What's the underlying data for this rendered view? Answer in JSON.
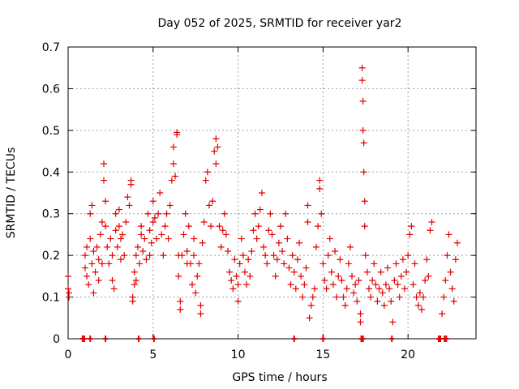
{
  "chart_data": {
    "type": "scatter",
    "title": "Day 052 of 2025, SRMTID for receiver yar2",
    "xlabel": "GPS time / hours",
    "ylabel": "SRMTID / TECUs",
    "xlim": [
      0,
      24
    ],
    "ylim": [
      0,
      0.7
    ],
    "xticks": [
      0,
      5,
      10,
      15,
      20
    ],
    "xtick_labels": [
      "0",
      "5",
      "10",
      "15",
      "20"
    ],
    "yticks": [
      0,
      0.1,
      0.2,
      0.3,
      0.4,
      0.5,
      0.6,
      0.7
    ],
    "ytick_labels": [
      "0",
      "0.1",
      "0.2",
      "0.3",
      "0.4",
      "0.5",
      "0.6",
      "0.7"
    ],
    "grid": true,
    "marker": "+",
    "series": [
      {
        "name": "SRMTID",
        "color": "#e00000",
        "points": [
          [
            0.0,
            0.15
          ],
          [
            0.0,
            0.12
          ],
          [
            0.05,
            0.1
          ],
          [
            0.05,
            0.11
          ],
          [
            1.0,
            0.2
          ],
          [
            1.0,
            0.17
          ],
          [
            1.1,
            0.22
          ],
          [
            1.1,
            0.15
          ],
          [
            1.2,
            0.13
          ],
          [
            1.3,
            0.24
          ],
          [
            1.3,
            0.3
          ],
          [
            1.4,
            0.32
          ],
          [
            1.4,
            0.18
          ],
          [
            1.5,
            0.11
          ],
          [
            1.5,
            0.21
          ],
          [
            1.6,
            0.16
          ],
          [
            1.7,
            0.22
          ],
          [
            1.8,
            0.19
          ],
          [
            1.8,
            0.14
          ],
          [
            1.9,
            0.25
          ],
          [
            2.0,
            0.28
          ],
          [
            2.0,
            0.18
          ],
          [
            2.1,
            0.42
          ],
          [
            2.1,
            0.38
          ],
          [
            2.2,
            0.33
          ],
          [
            2.2,
            0.27
          ],
          [
            2.3,
            0.22
          ],
          [
            2.4,
            0.18
          ],
          [
            2.5,
            0.24
          ],
          [
            2.6,
            0.2
          ],
          [
            2.6,
            0.14
          ],
          [
            2.7,
            0.12
          ],
          [
            2.8,
            0.3
          ],
          [
            2.8,
            0.26
          ],
          [
            2.9,
            0.22
          ],
          [
            3.0,
            0.27
          ],
          [
            3.0,
            0.31
          ],
          [
            3.1,
            0.24
          ],
          [
            3.1,
            0.19
          ],
          [
            3.2,
            0.25
          ],
          [
            3.3,
            0.2
          ],
          [
            3.4,
            0.28
          ],
          [
            3.5,
            0.34
          ],
          [
            3.6,
            0.32
          ],
          [
            3.7,
            0.38
          ],
          [
            3.7,
            0.37
          ],
          [
            3.8,
            0.1
          ],
          [
            3.8,
            0.09
          ],
          [
            3.9,
            0.13
          ],
          [
            3.9,
            0.16
          ],
          [
            4.0,
            0.2
          ],
          [
            4.0,
            0.14
          ],
          [
            4.1,
            0.22
          ],
          [
            4.2,
            0.18
          ],
          [
            4.3,
            0.25
          ],
          [
            4.3,
            0.27
          ],
          [
            4.4,
            0.21
          ],
          [
            4.5,
            0.24
          ],
          [
            4.6,
            0.19
          ],
          [
            4.7,
            0.3
          ],
          [
            4.8,
            0.26
          ],
          [
            4.8,
            0.2
          ],
          [
            4.9,
            0.23
          ],
          [
            5.0,
            0.28
          ],
          [
            5.0,
            0.33
          ],
          [
            5.1,
            0.29
          ],
          [
            5.2,
            0.24
          ],
          [
            5.3,
            0.3
          ],
          [
            5.4,
            0.35
          ],
          [
            5.5,
            0.25
          ],
          [
            5.6,
            0.2
          ],
          [
            5.7,
            0.27
          ],
          [
            5.8,
            0.3
          ],
          [
            5.9,
            0.24
          ],
          [
            6.0,
            0.32
          ],
          [
            6.1,
            0.38
          ],
          [
            6.2,
            0.42
          ],
          [
            6.2,
            0.46
          ],
          [
            6.3,
            0.39
          ],
          [
            6.4,
            0.49
          ],
          [
            6.4,
            0.495
          ],
          [
            6.5,
            0.2
          ],
          [
            6.5,
            0.15
          ],
          [
            6.6,
            0.09
          ],
          [
            6.6,
            0.07
          ],
          [
            6.7,
            0.2
          ],
          [
            6.8,
            0.25
          ],
          [
            6.9,
            0.3
          ],
          [
            7.0,
            0.21
          ],
          [
            7.0,
            0.18
          ],
          [
            7.1,
            0.27
          ],
          [
            7.2,
            0.18
          ],
          [
            7.3,
            0.13
          ],
          [
            7.4,
            0.2
          ],
          [
            7.4,
            0.24
          ],
          [
            7.5,
            0.11
          ],
          [
            7.6,
            0.15
          ],
          [
            7.7,
            0.18
          ],
          [
            7.8,
            0.06
          ],
          [
            7.8,
            0.08
          ],
          [
            7.9,
            0.23
          ],
          [
            8.0,
            0.28
          ],
          [
            8.1,
            0.38
          ],
          [
            8.2,
            0.4
          ],
          [
            8.3,
            0.32
          ],
          [
            8.4,
            0.27
          ],
          [
            8.5,
            0.33
          ],
          [
            8.6,
            0.45
          ],
          [
            8.7,
            0.48
          ],
          [
            8.7,
            0.42
          ],
          [
            8.8,
            0.46
          ],
          [
            8.9,
            0.27
          ],
          [
            9.0,
            0.22
          ],
          [
            9.1,
            0.26
          ],
          [
            9.2,
            0.3
          ],
          [
            9.3,
            0.25
          ],
          [
            9.4,
            0.21
          ],
          [
            9.5,
            0.16
          ],
          [
            9.6,
            0.14
          ],
          [
            9.7,
            0.12
          ],
          [
            9.8,
            0.19
          ],
          [
            9.9,
            0.15
          ],
          [
            10.0,
            0.13
          ],
          [
            10.0,
            0.09
          ],
          [
            10.1,
            0.18
          ],
          [
            10.2,
            0.24
          ],
          [
            10.3,
            0.2
          ],
          [
            10.4,
            0.16
          ],
          [
            10.5,
            0.13
          ],
          [
            10.6,
            0.19
          ],
          [
            10.7,
            0.15
          ],
          [
            10.8,
            0.21
          ],
          [
            10.9,
            0.26
          ],
          [
            11.0,
            0.3
          ],
          [
            11.1,
            0.24
          ],
          [
            11.2,
            0.27
          ],
          [
            11.3,
            0.31
          ],
          [
            11.4,
            0.35
          ],
          [
            11.5,
            0.22
          ],
          [
            11.6,
            0.2
          ],
          [
            11.7,
            0.18
          ],
          [
            11.8,
            0.26
          ],
          [
            11.9,
            0.3
          ],
          [
            12.0,
            0.25
          ],
          [
            12.1,
            0.2
          ],
          [
            12.2,
            0.15
          ],
          [
            12.3,
            0.19
          ],
          [
            12.4,
            0.23
          ],
          [
            12.5,
            0.27
          ],
          [
            12.6,
            0.21
          ],
          [
            12.7,
            0.18
          ],
          [
            12.8,
            0.3
          ],
          [
            12.9,
            0.24
          ],
          [
            13.0,
            0.17
          ],
          [
            13.1,
            0.13
          ],
          [
            13.2,
            0.2
          ],
          [
            13.3,
            0.16
          ],
          [
            13.4,
            0.12
          ],
          [
            13.5,
            0.19
          ],
          [
            13.6,
            0.23
          ],
          [
            13.7,
            0.15
          ],
          [
            13.8,
            0.1
          ],
          [
            13.9,
            0.13
          ],
          [
            14.0,
            0.17
          ],
          [
            14.1,
            0.32
          ],
          [
            14.1,
            0.28
          ],
          [
            14.2,
            0.05
          ],
          [
            14.3,
            0.08
          ],
          [
            14.4,
            0.1
          ],
          [
            14.5,
            0.12
          ],
          [
            14.6,
            0.22
          ],
          [
            14.7,
            0.27
          ],
          [
            14.8,
            0.38
          ],
          [
            14.8,
            0.36
          ],
          [
            14.9,
            0.3
          ],
          [
            15.0,
            0.18
          ],
          [
            15.1,
            0.14
          ],
          [
            15.2,
            0.12
          ],
          [
            15.3,
            0.2
          ],
          [
            15.4,
            0.24
          ],
          [
            15.5,
            0.16
          ],
          [
            15.6,
            0.13
          ],
          [
            15.7,
            0.21
          ],
          [
            15.8,
            0.1
          ],
          [
            15.9,
            0.15
          ],
          [
            16.0,
            0.19
          ],
          [
            16.1,
            0.14
          ],
          [
            16.2,
            0.1
          ],
          [
            16.3,
            0.08
          ],
          [
            16.4,
            0.12
          ],
          [
            16.5,
            0.18
          ],
          [
            16.6,
            0.22
          ],
          [
            16.7,
            0.15
          ],
          [
            16.8,
            0.11
          ],
          [
            16.9,
            0.13
          ],
          [
            17.0,
            0.09
          ],
          [
            17.1,
            0.14
          ],
          [
            17.2,
            0.04
          ],
          [
            17.2,
            0.06
          ],
          [
            17.3,
            0.65
          ],
          [
            17.3,
            0.62
          ],
          [
            17.35,
            0.57
          ],
          [
            17.35,
            0.5
          ],
          [
            17.4,
            0.47
          ],
          [
            17.4,
            0.4
          ],
          [
            17.45,
            0.33
          ],
          [
            17.45,
            0.27
          ],
          [
            17.5,
            0.2
          ],
          [
            17.6,
            0.16
          ],
          [
            17.7,
            0.12
          ],
          [
            17.8,
            0.1
          ],
          [
            17.9,
            0.14
          ],
          [
            18.0,
            0.18
          ],
          [
            18.1,
            0.13
          ],
          [
            18.2,
            0.09
          ],
          [
            18.3,
            0.12
          ],
          [
            18.4,
            0.16
          ],
          [
            18.5,
            0.11
          ],
          [
            18.6,
            0.08
          ],
          [
            18.7,
            0.13
          ],
          [
            18.8,
            0.17
          ],
          [
            18.9,
            0.12
          ],
          [
            19.0,
            0.09
          ],
          [
            19.1,
            0.04
          ],
          [
            19.2,
            0.14
          ],
          [
            19.3,
            0.18
          ],
          [
            19.4,
            0.13
          ],
          [
            19.5,
            0.1
          ],
          [
            19.6,
            0.15
          ],
          [
            19.7,
            0.19
          ],
          [
            19.8,
            0.12
          ],
          [
            19.9,
            0.16
          ],
          [
            20.0,
            0.2
          ],
          [
            20.1,
            0.25
          ],
          [
            20.2,
            0.27
          ],
          [
            20.3,
            0.13
          ],
          [
            20.4,
            0.18
          ],
          [
            20.5,
            0.1
          ],
          [
            20.6,
            0.08
          ],
          [
            20.7,
            0.11
          ],
          [
            20.8,
            0.07
          ],
          [
            20.9,
            0.1
          ],
          [
            21.0,
            0.14
          ],
          [
            21.1,
            0.19
          ],
          [
            21.2,
            0.15
          ],
          [
            21.3,
            0.26
          ],
          [
            21.4,
            0.28
          ],
          [
            22.0,
            0.06
          ],
          [
            22.1,
            0.1
          ],
          [
            22.2,
            0.14
          ],
          [
            22.3,
            0.2
          ],
          [
            22.4,
            0.25
          ],
          [
            22.5,
            0.16
          ],
          [
            22.6,
            0.12
          ],
          [
            22.7,
            0.09
          ],
          [
            22.8,
            0.19
          ],
          [
            22.9,
            0.23
          ]
        ]
      }
    ],
    "zero_marks_x": [
      0.85,
      0.95,
      1.3,
      2.2,
      4.15,
      5.05,
      13.3,
      15.0,
      17.25,
      17.35,
      19.05,
      21.8,
      21.9,
      22.15,
      22.25
    ]
  }
}
